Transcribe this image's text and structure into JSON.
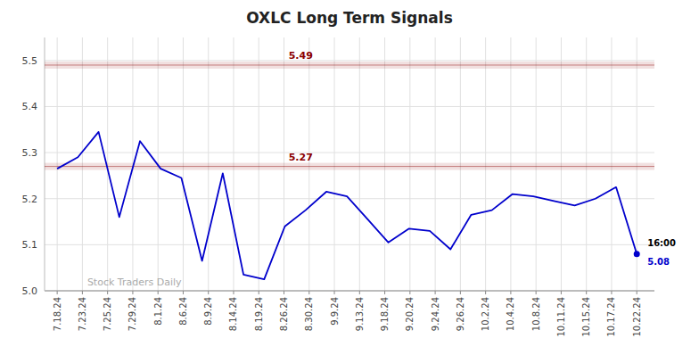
{
  "chart_data": {
    "type": "line",
    "title": "OXLC Long Term Signals",
    "x": [
      0,
      0.8214285714285714,
      1.6428571428571428,
      2.4642857142857144,
      3.2857142857142856,
      4.107142857142857,
      4.928571428571429,
      5.75,
      6.571428571428571,
      7.392857142857143,
      8.214285714285714,
      9.035714285714286,
      9.857142857142858,
      10.678571428571429,
      11.5,
      12.321428571428571,
      13.142857142857142,
      13.964285714285714,
      14.785714285714286,
      15.607142857142858,
      16.428571428571427,
      17.25,
      18.071428571428573,
      18.892857142857142,
      19.714285714285715,
      20.535714285714285,
      21.357142857142858,
      22.178571428571427,
      23
    ],
    "values": [
      5.265,
      5.29,
      5.345,
      5.16,
      5.325,
      5.265,
      5.245,
      5.065,
      5.255,
      5.035,
      5.025,
      5.14,
      5.175,
      5.215,
      5.205,
      5.155,
      5.105,
      5.135,
      5.13,
      5.09,
      5.165,
      5.175,
      5.21,
      5.205,
      5.195,
      5.185,
      5.2,
      5.225,
      5.08
    ],
    "color": "#0000cc",
    "xlim": [
      -0.5,
      23.7
    ],
    "xticks": [
      {
        "value": 0,
        "label": "7.18.24"
      },
      {
        "value": 1,
        "label": "7.23.24"
      },
      {
        "value": 2,
        "label": "7.25.24"
      },
      {
        "value": 3,
        "label": "7.29.24"
      },
      {
        "value": 4,
        "label": "8.1.24"
      },
      {
        "value": 5,
        "label": "8.6.24"
      },
      {
        "value": 6,
        "label": "8.9.24"
      },
      {
        "value": 7,
        "label": "8.14.24"
      },
      {
        "value": 8,
        "label": "8.19.24"
      },
      {
        "value": 9,
        "label": "8.26.24"
      },
      {
        "value": 10,
        "label": "8.30.24"
      },
      {
        "value": 11,
        "label": "9.9.24"
      },
      {
        "value": 12,
        "label": "9.13.24"
      },
      {
        "value": 13,
        "label": "9.18.24"
      },
      {
        "value": 14,
        "label": "9.20.24"
      },
      {
        "value": 15,
        "label": "9.24.24"
      },
      {
        "value": 16,
        "label": "9.26.24"
      },
      {
        "value": 17,
        "label": "10.2.24"
      },
      {
        "value": 18,
        "label": "10.4.24"
      },
      {
        "value": 19,
        "label": "10.8.24"
      },
      {
        "value": 20,
        "label": "10.11.24"
      },
      {
        "value": 21,
        "label": "10.15.24"
      },
      {
        "value": 22,
        "label": "10.17.24"
      },
      {
        "value": 23,
        "label": "10.22.24"
      }
    ],
    "ylim": [
      5.0,
      5.55
    ],
    "yticks": [
      {
        "value": 5.0,
        "label": "5.0"
      },
      5.1,
      5.2,
      5.3,
      5.4,
      5.5
    ],
    "grid": true,
    "hlines": [
      {
        "value": 5.49,
        "label": "5.49",
        "color": "#8b0000"
      },
      {
        "value": 5.27,
        "label": "5.27",
        "color": "#8b0000"
      }
    ],
    "annotations": [
      {
        "text": "16:00"
      },
      {
        "text": "5.08",
        "value": 5.08
      },
      {
        "text": "Stock Traders Daily"
      }
    ]
  }
}
